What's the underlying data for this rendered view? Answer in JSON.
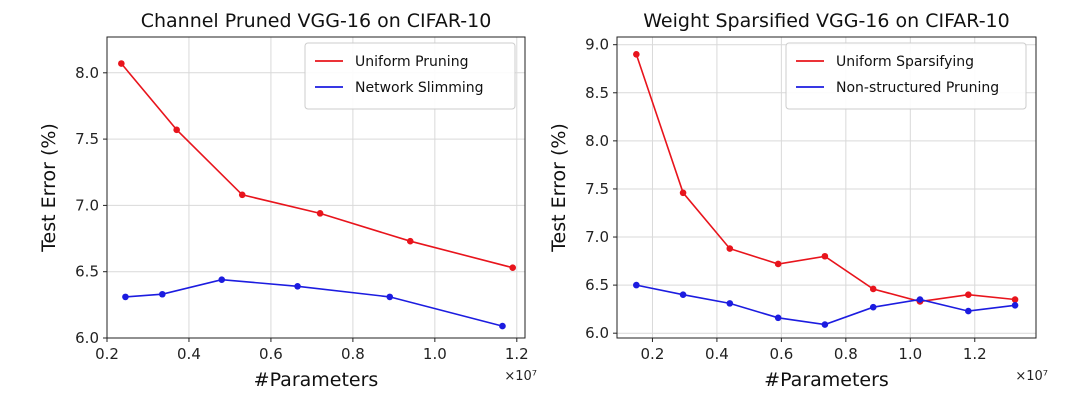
{
  "chart_data": [
    {
      "type": "line",
      "title": "Channel Pruned VGG-16 on CIFAR-10",
      "xlabel": "#Parameters",
      "ylabel": "Test Error (%)",
      "x_multiplier": "×10⁷",
      "xlim": [
        0.2,
        1.22
      ],
      "ylim": [
        6.0,
        8.27
      ],
      "xticks": [
        0.2,
        0.4,
        0.6,
        0.8,
        1.0,
        1.2
      ],
      "xtick_labels": [
        "0.2",
        "0.4",
        "0.6",
        "0.8",
        "1.0",
        "1.2"
      ],
      "yticks": [
        6.0,
        6.5,
        7.0,
        7.5,
        8.0
      ],
      "ytick_labels": [
        "6.0",
        "6.5",
        "7.0",
        "7.5",
        "8.0"
      ],
      "grid": true,
      "legend_position": "top-right",
      "series": [
        {
          "name": "Uniform Pruning",
          "color": "#e8141c",
          "x": [
            0.235,
            0.37,
            0.53,
            0.72,
            0.94,
            1.19
          ],
          "y": [
            8.07,
            7.57,
            7.08,
            6.94,
            6.73,
            6.53
          ]
        },
        {
          "name": "Network Slimming",
          "color": "#1c1ce0",
          "x": [
            0.245,
            0.335,
            0.48,
            0.665,
            0.89,
            1.165
          ],
          "y": [
            6.31,
            6.33,
            6.44,
            6.39,
            6.31,
            6.09
          ]
        }
      ]
    },
    {
      "type": "line",
      "title": "Weight Sparsified VGG-16 on CIFAR-10",
      "xlabel": "#Parameters",
      "ylabel": "Test Error (%)",
      "x_multiplier": "×10⁷",
      "xlim": [
        0.09,
        1.39
      ],
      "ylim": [
        5.95,
        9.08
      ],
      "xticks": [
        0.2,
        0.4,
        0.6,
        0.8,
        1.0,
        1.2
      ],
      "xtick_labels": [
        "0.2",
        "0.4",
        "0.6",
        "0.8",
        "1.0",
        "1.2"
      ],
      "yticks": [
        6.0,
        6.5,
        7.0,
        7.5,
        8.0,
        8.5,
        9.0
      ],
      "ytick_labels": [
        "6.0",
        "6.5",
        "7.0",
        "7.5",
        "8.0",
        "8.5",
        "9.0"
      ],
      "grid": true,
      "legend_position": "top-right",
      "series": [
        {
          "name": "Uniform Sparsifying",
          "color": "#e8141c",
          "x": [
            0.15,
            0.295,
            0.44,
            0.59,
            0.735,
            0.885,
            1.03,
            1.18,
            1.325
          ],
          "y": [
            8.9,
            7.46,
            6.88,
            6.72,
            6.8,
            6.46,
            6.33,
            6.4,
            6.35
          ]
        },
        {
          "name": "Non-structured Pruning",
          "color": "#1c1ce0",
          "x": [
            0.15,
            0.295,
            0.44,
            0.59,
            0.735,
            0.885,
            1.03,
            1.18,
            1.325
          ],
          "y": [
            6.5,
            6.4,
            6.31,
            6.16,
            6.09,
            6.27,
            6.35,
            6.23,
            6.29
          ]
        }
      ]
    }
  ]
}
